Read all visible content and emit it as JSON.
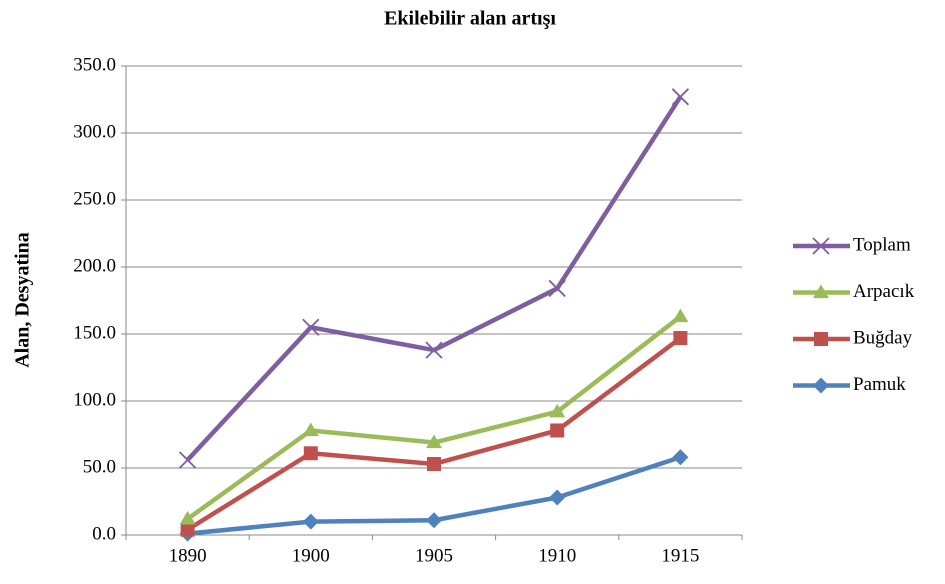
{
  "chart_data": {
    "type": "line",
    "title": "Ekilebilir alan artışı",
    "y_label": "Alan, Desyatina",
    "categories": [
      "1890",
      "1900",
      "1905",
      "1910",
      "1915"
    ],
    "series": [
      {
        "name": "Toplam",
        "color": "#7d5fa0",
        "marker": "x",
        "values": [
          56,
          155,
          138,
          184,
          327
        ]
      },
      {
        "name": "Arpacık",
        "color": "#9bbb59",
        "marker": "triangle",
        "values": [
          12,
          78,
          69,
          92,
          163
        ]
      },
      {
        "name": "Buğday",
        "color": "#c0504d",
        "marker": "square",
        "values": [
          4,
          61,
          53,
          78,
          147
        ]
      },
      {
        "name": "Pamuk",
        "color": "#4f81bd",
        "marker": "diamond",
        "values": [
          1,
          10,
          11,
          28,
          58
        ]
      }
    ],
    "ylim": [
      0,
      350
    ],
    "yticks": [
      {
        "value": 0,
        "label": "0.0"
      },
      {
        "value": 50,
        "label": "50.0"
      },
      {
        "value": 100,
        "label": "100.0"
      },
      {
        "value": 150,
        "label": "150.0"
      },
      {
        "value": 200,
        "label": "200.0"
      },
      {
        "value": 250,
        "label": "250.0"
      },
      {
        "value": 300,
        "label": "300.0"
      },
      {
        "value": 350,
        "label": "350.0"
      }
    ],
    "grid": true,
    "legend": "right"
  }
}
